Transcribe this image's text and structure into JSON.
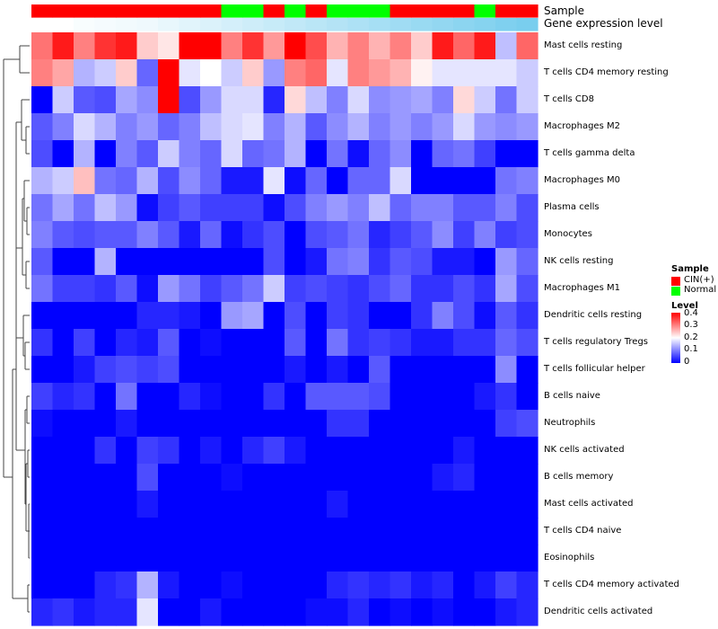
{
  "chart_data": {
    "type": "heatmap",
    "title": "",
    "annotation_tracks": [
      "Sample",
      "Gene expression level"
    ],
    "n_samples": 24,
    "sample_groups": [
      "CIN(+)",
      "CIN(+)",
      "CIN(+)",
      "CIN(+)",
      "CIN(+)",
      "CIN(+)",
      "CIN(+)",
      "CIN(+)",
      "CIN(+)",
      "Normal",
      "Normal",
      "CIN(+)",
      "Normal",
      "CIN(+)",
      "Normal",
      "Normal",
      "Normal",
      "CIN(+)",
      "CIN(+)",
      "CIN(+)",
      "CIN(+)",
      "Normal",
      "CIN(+)",
      "CIN(+)"
    ],
    "expression_level_track": [
      0.0,
      0.0,
      0.04,
      0.06,
      0.08,
      0.1,
      0.14,
      0.18,
      0.22,
      0.26,
      0.3,
      0.34,
      0.38,
      0.42,
      0.46,
      0.5,
      0.54,
      0.58,
      0.62,
      0.66,
      0.7,
      0.74,
      0.78,
      0.82
    ],
    "rows": [
      "Mast cells resting",
      "T cells CD4 memory resting",
      "T cells CD8",
      "Macrophages M2",
      "T cells gamma delta",
      "Macrophages M0",
      "Plasma cells",
      "Monocytes",
      "NK cells resting",
      "Macrophages M1",
      "Dendritic cells resting",
      "T cells regulatory  Tregs",
      "T cells follicular helper",
      "B cells naive",
      "Neutrophils",
      "NK cells activated",
      "B cells memory",
      "Mast cells activated",
      "T cells CD4 naive",
      "Eosinophils",
      "T cells CD4 memory activated",
      "Dendritic cells activated"
    ],
    "values": [
      [
        0.31,
        0.38,
        0.3,
        0.36,
        0.38,
        0.24,
        0.22,
        0.4,
        0.4,
        0.3,
        0.36,
        0.28,
        0.4,
        0.34,
        0.26,
        0.3,
        0.26,
        0.3,
        0.24,
        0.38,
        0.32,
        0.38,
        0.15,
        0.32
      ],
      [
        0.3,
        0.27,
        0.14,
        0.16,
        0.24,
        0.08,
        0.4,
        0.18,
        0.2,
        0.16,
        0.24,
        0.12,
        0.3,
        0.32,
        0.18,
        0.3,
        0.28,
        0.26,
        0.21,
        0.18,
        0.18,
        0.18,
        0.18,
        0.16
      ],
      [
        0.0,
        0.16,
        0.07,
        0.06,
        0.13,
        0.11,
        0.4,
        0.06,
        0.12,
        0.17,
        0.17,
        0.03,
        0.23,
        0.15,
        0.1,
        0.17,
        0.11,
        0.12,
        0.13,
        0.1,
        0.23,
        0.16,
        0.09,
        0.16
      ],
      [
        0.07,
        0.1,
        0.17,
        0.14,
        0.1,
        0.12,
        0.08,
        0.1,
        0.15,
        0.17,
        0.18,
        0.1,
        0.14,
        0.07,
        0.11,
        0.14,
        0.1,
        0.12,
        0.1,
        0.12,
        0.17,
        0.12,
        0.11,
        0.12
      ],
      [
        0.06,
        0.0,
        0.14,
        0.0,
        0.1,
        0.07,
        0.16,
        0.1,
        0.08,
        0.17,
        0.08,
        0.09,
        0.14,
        0.0,
        0.09,
        0.01,
        0.08,
        0.11,
        0.0,
        0.08,
        0.09,
        0.05,
        0.0,
        0.0
      ],
      [
        0.14,
        0.16,
        0.25,
        0.09,
        0.08,
        0.14,
        0.06,
        0.11,
        0.08,
        0.02,
        0.02,
        0.18,
        0.01,
        0.08,
        0.0,
        0.08,
        0.08,
        0.17,
        0.0,
        0.0,
        0.0,
        0.0,
        0.09,
        0.1
      ],
      [
        0.09,
        0.13,
        0.09,
        0.15,
        0.12,
        0.01,
        0.05,
        0.07,
        0.05,
        0.05,
        0.05,
        0.01,
        0.06,
        0.1,
        0.12,
        0.1,
        0.15,
        0.08,
        0.1,
        0.1,
        0.07,
        0.07,
        0.1,
        0.06
      ],
      [
        0.1,
        0.07,
        0.06,
        0.07,
        0.07,
        0.1,
        0.07,
        0.02,
        0.08,
        0.01,
        0.04,
        0.06,
        0.0,
        0.06,
        0.07,
        0.09,
        0.03,
        0.05,
        0.07,
        0.11,
        0.05,
        0.1,
        0.05,
        0.06
      ],
      [
        0.07,
        0.0,
        0.0,
        0.14,
        0.0,
        0.0,
        0.0,
        0.0,
        0.0,
        0.0,
        0.0,
        0.06,
        0.0,
        0.02,
        0.09,
        0.1,
        0.04,
        0.07,
        0.06,
        0.02,
        0.02,
        0.0,
        0.12,
        0.08
      ],
      [
        0.09,
        0.05,
        0.05,
        0.04,
        0.07,
        0.01,
        0.12,
        0.09,
        0.05,
        0.07,
        0.09,
        0.16,
        0.05,
        0.06,
        0.05,
        0.04,
        0.06,
        0.08,
        0.04,
        0.04,
        0.06,
        0.04,
        0.13,
        0.06
      ],
      [
        0.0,
        0.0,
        0.0,
        0.0,
        0.0,
        0.03,
        0.03,
        0.02,
        0.0,
        0.12,
        0.13,
        0.0,
        0.06,
        0.0,
        0.05,
        0.04,
        0.0,
        0.0,
        0.04,
        0.1,
        0.06,
        0.01,
        0.07,
        0.04
      ],
      [
        0.04,
        0.0,
        0.05,
        0.0,
        0.03,
        0.02,
        0.07,
        0.0,
        0.01,
        0.0,
        0.0,
        0.0,
        0.07,
        0.0,
        0.09,
        0.04,
        0.05,
        0.04,
        0.02,
        0.02,
        0.04,
        0.04,
        0.08,
        0.06
      ],
      [
        0.0,
        0.0,
        0.02,
        0.05,
        0.06,
        0.05,
        0.06,
        0.0,
        0.0,
        0.0,
        0.0,
        0.0,
        0.02,
        0.0,
        0.02,
        0.0,
        0.07,
        0.0,
        0.0,
        0.0,
        0.0,
        0.0,
        0.11,
        0.0
      ],
      [
        0.05,
        0.03,
        0.04,
        0.0,
        0.09,
        0.0,
        0.0,
        0.03,
        0.01,
        0.0,
        0.0,
        0.04,
        0.0,
        0.07,
        0.07,
        0.07,
        0.06,
        0.0,
        0.0,
        0.0,
        0.0,
        0.02,
        0.04,
        0.0
      ],
      [
        0.01,
        0.0,
        0.0,
        0.0,
        0.02,
        0.0,
        0.0,
        0.0,
        0.0,
        0.0,
        0.0,
        0.0,
        0.0,
        0.0,
        0.04,
        0.04,
        0.0,
        0.0,
        0.0,
        0.0,
        0.0,
        0.0,
        0.05,
        0.06
      ],
      [
        0.0,
        0.0,
        0.0,
        0.04,
        0.0,
        0.05,
        0.04,
        0.0,
        0.02,
        0.0,
        0.03,
        0.05,
        0.02,
        0.0,
        0.0,
        0.0,
        0.0,
        0.0,
        0.0,
        0.0,
        0.02,
        0.0,
        0.0,
        0.0
      ],
      [
        0.0,
        0.0,
        0.0,
        0.0,
        0.0,
        0.06,
        0.0,
        0.0,
        0.0,
        0.01,
        0.0,
        0.0,
        0.0,
        0.0,
        0.0,
        0.0,
        0.0,
        0.0,
        0.0,
        0.02,
        0.03,
        0.0,
        0.0,
        0.0
      ],
      [
        0.0,
        0.0,
        0.0,
        0.0,
        0.0,
        0.02,
        0.0,
        0.0,
        0.0,
        0.0,
        0.0,
        0.0,
        0.0,
        0.0,
        0.02,
        0.0,
        0.0,
        0.0,
        0.0,
        0.0,
        0.0,
        0.0,
        0.0,
        0.0
      ],
      [
        0.0,
        0.0,
        0.0,
        0.0,
        0.0,
        0.0,
        0.0,
        0.0,
        0.0,
        0.0,
        0.0,
        0.0,
        0.0,
        0.0,
        0.0,
        0.0,
        0.0,
        0.0,
        0.0,
        0.0,
        0.0,
        0.0,
        0.0,
        0.0
      ],
      [
        0.0,
        0.0,
        0.0,
        0.0,
        0.0,
        0.0,
        0.0,
        0.0,
        0.0,
        0.0,
        0.0,
        0.0,
        0.0,
        0.0,
        0.0,
        0.0,
        0.0,
        0.0,
        0.0,
        0.0,
        0.0,
        0.0,
        0.0,
        0.0
      ],
      [
        0.0,
        0.0,
        0.0,
        0.03,
        0.04,
        0.14,
        0.02,
        0.0,
        0.0,
        0.01,
        0.0,
        0.0,
        0.0,
        0.0,
        0.03,
        0.04,
        0.03,
        0.04,
        0.02,
        0.03,
        0.0,
        0.02,
        0.05,
        0.03
      ],
      [
        0.03,
        0.04,
        0.02,
        0.03,
        0.03,
        0.18,
        0.0,
        0.0,
        0.02,
        0.0,
        0.0,
        0.0,
        0.0,
        0.01,
        0.01,
        0.03,
        0.0,
        0.01,
        0.0,
        0.01,
        0.0,
        0.0,
        0.02,
        0.03
      ]
    ],
    "legend": {
      "sample": {
        "title": "Sample",
        "entries": [
          {
            "label": "CIN(+)",
            "color": "#FF0000"
          },
          {
            "label": "Normal",
            "color": "#00FF00"
          }
        ]
      },
      "level": {
        "title": "Level",
        "ticks": [
          0.4,
          0.3,
          0.2,
          0.1,
          0
        ],
        "tick_labels": [
          "0.4",
          "0.3",
          "0.2",
          "0.1",
          "0"
        ],
        "range": [
          0,
          0.4
        ],
        "colors": {
          "low": "#0000FF",
          "mid": "#FFFFFF",
          "high": "#FF0000"
        }
      }
    },
    "legend_position": "right",
    "colors": {
      "expr_low": "#FFFFFF",
      "expr_high": "#5BC3EA",
      "dendrogram": "#444444"
    }
  }
}
